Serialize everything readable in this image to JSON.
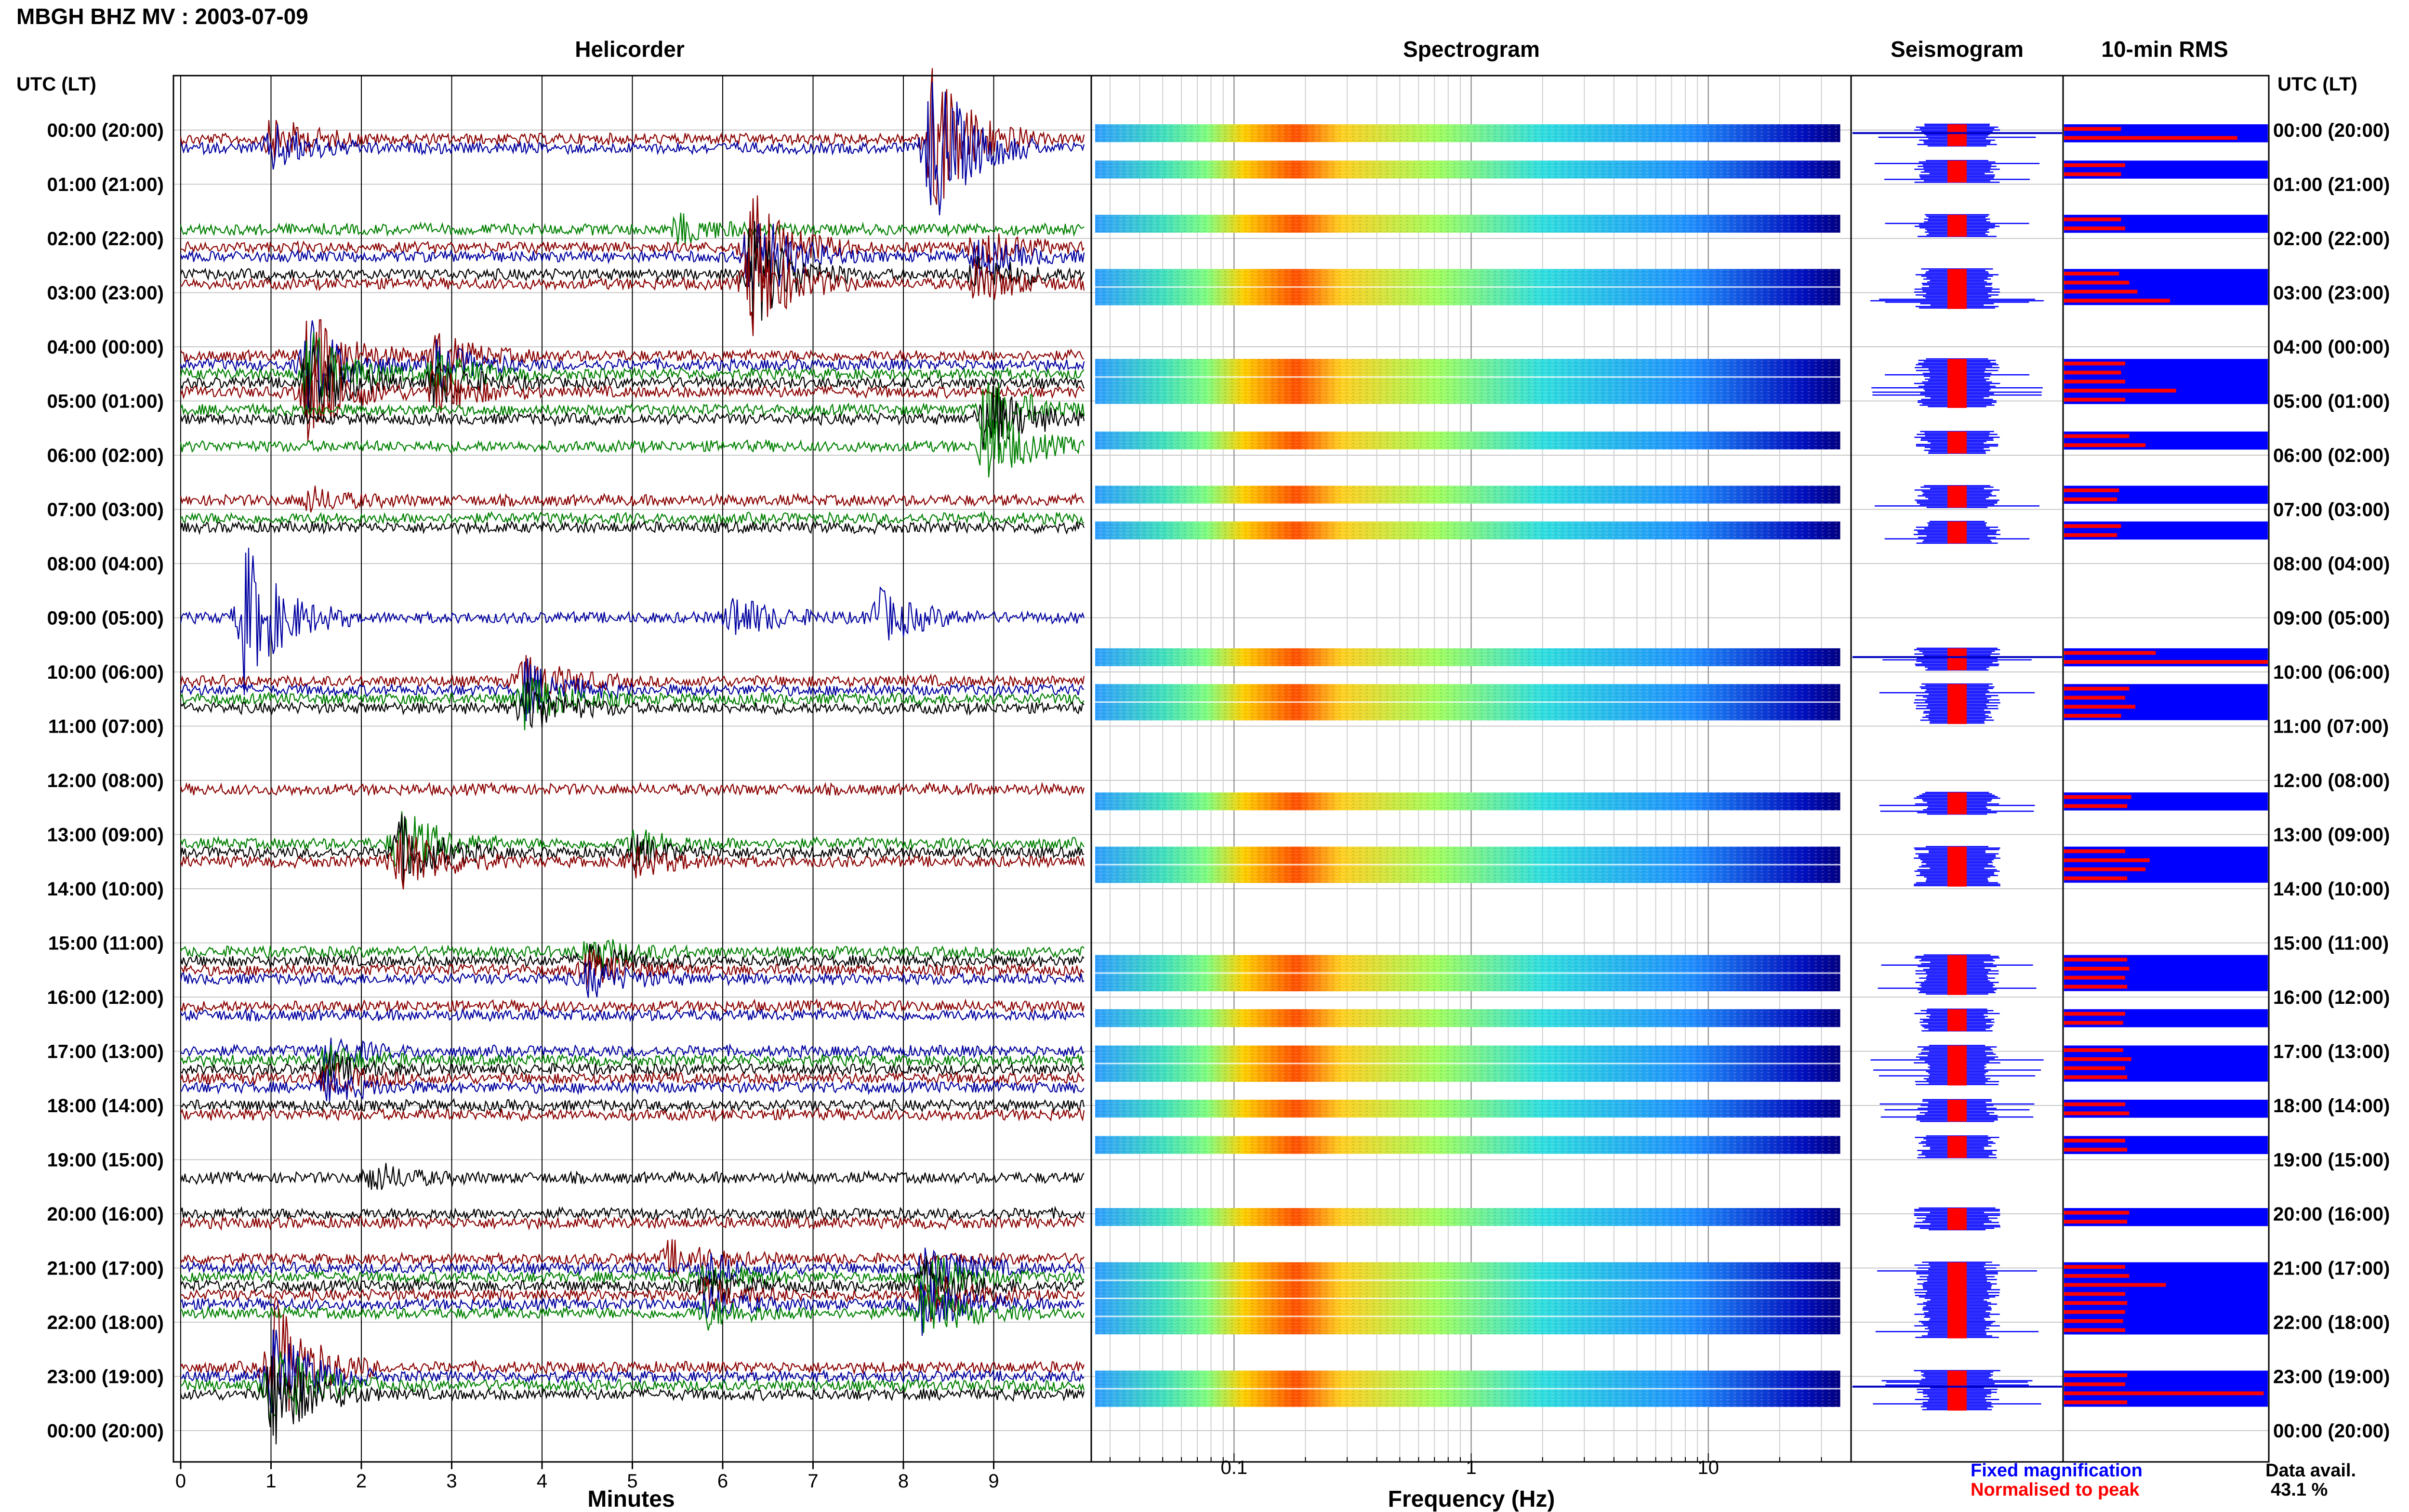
{
  "figure_title": "MBGH BHZ MV : 2003-07-09",
  "utc_label_left": "UTC (LT)",
  "utc_label_right": "UTC (LT)",
  "time_labels": [
    "00:00 (20:00)",
    "01:00 (21:00)",
    "02:00 (22:00)",
    "03:00 (23:00)",
    "04:00 (00:00)",
    "05:00 (01:00)",
    "06:00 (02:00)",
    "07:00 (03:00)",
    "08:00 (04:00)",
    "09:00 (05:00)",
    "10:00 (06:00)",
    "11:00 (07:00)",
    "12:00 (08:00)",
    "13:00 (09:00)",
    "14:00 (10:00)",
    "15:00 (11:00)",
    "16:00 (12:00)",
    "17:00 (13:00)",
    "18:00 (14:00)",
    "19:00 (15:00)",
    "20:00 (16:00)",
    "21:00 (17:00)",
    "22:00 (18:00)",
    "23:00 (19:00)",
    "00:00 (20:00)"
  ],
  "legend": {
    "fixed": "Fixed magnification",
    "normalised": "Normalised to peak",
    "fixed_color": "#0000ff",
    "normalised_color": "#ff0000"
  },
  "data_avail": {
    "label": "Data avail.",
    "value": "43.1 %"
  },
  "chart_data": [
    {
      "type": "line",
      "title": "Helicorder",
      "xlabel": "Minutes",
      "xlim": [
        0,
        10
      ],
      "xticks": [
        "0",
        "1",
        "2",
        "3",
        "4",
        "5",
        "6",
        "7",
        "8",
        "9"
      ],
      "trace_colors": [
        "#000000",
        "#8b0000",
        "#0000a0",
        "#008000"
      ],
      "rows": [
        {
          "hour": 0,
          "slots": [
            1,
            2
          ],
          "events": [
            {
              "min": 1.0,
              "amp": 0.8
            },
            {
              "min": 8.3,
              "amp": 3.0
            }
          ]
        },
        {
          "hour": 1,
          "slots": [
            5
          ],
          "events": [
            {
              "min": 5.5,
              "amp": 0.5
            }
          ]
        },
        {
          "hour": 2,
          "slots": [
            1,
            2,
            4,
            5
          ],
          "events": [
            {
              "min": 6.3,
              "amp": 2.0
            },
            {
              "min": 8.8,
              "amp": 0.7
            }
          ]
        },
        {
          "hour": 4,
          "slots": [
            1,
            2,
            3,
            4,
            5
          ],
          "events": [
            {
              "min": 1.4,
              "amp": 1.6
            },
            {
              "min": 2.8,
              "amp": 0.8
            }
          ]
        },
        {
          "hour": 5,
          "slots": [
            1,
            2,
            5
          ],
          "events": [
            {
              "min": 8.9,
              "amp": 1.4
            }
          ]
        },
        {
          "hour": 6,
          "slots": [
            5
          ],
          "events": [
            {
              "min": 1.4,
              "amp": 0.4
            }
          ]
        },
        {
          "hour": 7,
          "slots": [
            1,
            2
          ],
          "events": []
        },
        {
          "hour": 9,
          "slots": [
            0
          ],
          "events": [
            {
              "min": 0.7,
              "amp": 2.6
            },
            {
              "min": 6.1,
              "amp": 0.8
            },
            {
              "min": 7.7,
              "amp": 1.0
            }
          ]
        },
        {
          "hour": 10,
          "slots": [
            1,
            2,
            3,
            4
          ],
          "events": [
            {
              "min": 3.8,
              "amp": 1.0
            }
          ]
        },
        {
          "hour": 12,
          "slots": [
            1
          ],
          "events": []
        },
        {
          "hour": 13,
          "slots": [
            1,
            2,
            3
          ],
          "events": [
            {
              "min": 2.4,
              "amp": 1.3
            },
            {
              "min": 5.0,
              "amp": 0.5
            }
          ]
        },
        {
          "hour": 15,
          "slots": [
            1,
            2,
            3,
            4
          ],
          "events": [
            {
              "min": 4.5,
              "amp": 0.6
            }
          ]
        },
        {
          "hour": 16,
          "slots": [
            1,
            2
          ],
          "events": []
        },
        {
          "hour": 17,
          "slots": [
            0,
            1,
            2,
            3,
            4
          ],
          "events": [
            {
              "min": 1.6,
              "amp": 0.5
            }
          ]
        },
        {
          "hour": 18,
          "slots": [
            0,
            1
          ],
          "events": []
        },
        {
          "hour": 19,
          "slots": [
            2
          ],
          "events": [
            {
              "min": 2.1,
              "amp": 0.5
            }
          ]
        },
        {
          "hour": 20,
          "slots": [
            0,
            1
          ],
          "events": []
        },
        {
          "hour": 20,
          "slots": [
            5
          ],
          "events": [
            {
              "min": 5.4,
              "amp": 0.6
            }
          ]
        },
        {
          "hour": 21,
          "slots": [
            0,
            1,
            2,
            3,
            4,
            5
          ],
          "events": [
            {
              "min": 8.2,
              "amp": 1.0
            },
            {
              "min": 5.8,
              "amp": 0.5
            }
          ]
        },
        {
          "hour": 22,
          "slots": [
            5
          ],
          "events": [
            {
              "min": 1.0,
              "amp": 2.6
            }
          ]
        },
        {
          "hour": 23,
          "slots": [
            0,
            1,
            2
          ],
          "events": [
            {
              "min": 1.0,
              "amp": 1.8
            }
          ]
        }
      ]
    },
    {
      "type": "heatmap",
      "title": "Spectrogram",
      "xlabel": "Frequency (Hz)",
      "xscale": "log",
      "xlim": [
        0.025,
        40
      ],
      "xticks": [
        "0.1",
        "1",
        "10"
      ],
      "colormap": [
        "#00008f",
        "#0000ff",
        "#0080ff",
        "#00ffff",
        "#80ff80",
        "#ffff00",
        "#ff8000",
        "#ff0000"
      ],
      "rows": [
        {
          "hour": 0.0,
          "span": 0.33
        },
        {
          "hour": 0.67,
          "span": 0.33
        },
        {
          "hour": 1.67,
          "span": 0.33
        },
        {
          "hour": 2.67,
          "span": 0.67
        },
        {
          "hour": 4.33,
          "span": 0.83
        },
        {
          "hour": 5.67,
          "span": 0.33
        },
        {
          "hour": 6.67,
          "span": 0.33
        },
        {
          "hour": 7.33,
          "span": 0.33
        },
        {
          "hour": 9.67,
          "span": 0.33
        },
        {
          "hour": 10.33,
          "span": 0.67
        },
        {
          "hour": 12.33,
          "span": 0.33
        },
        {
          "hour": 13.33,
          "span": 0.67
        },
        {
          "hour": 15.33,
          "span": 0.67
        },
        {
          "hour": 16.33,
          "span": 0.33
        },
        {
          "hour": 17.0,
          "span": 0.67
        },
        {
          "hour": 18.0,
          "span": 0.33
        },
        {
          "hour": 18.67,
          "span": 0.33
        },
        {
          "hour": 20.0,
          "span": 0.33
        },
        {
          "hour": 21.0,
          "span": 1.33
        },
        {
          "hour": 23.0,
          "span": 0.67
        }
      ]
    },
    {
      "type": "bar",
      "title": "Seismogram",
      "series": [
        {
          "name": "Fixed magnification",
          "color": "#0000ff"
        },
        {
          "name": "Normalised to peak",
          "color": "#ff0000"
        }
      ]
    },
    {
      "type": "bar",
      "title": "10-min RMS",
      "orientation": "horizontal",
      "series": [
        {
          "name": "Fixed magnification",
          "color": "#0000ff"
        },
        {
          "name": "Normalised to peak",
          "color": "#ff0000"
        }
      ],
      "rows": [
        {
          "hour": 0.0,
          "values": [
            0.28,
            0.85
          ]
        },
        {
          "hour": 0.67,
          "values": [
            0.3,
            0.28
          ]
        },
        {
          "hour": 1.67,
          "values": [
            0.28,
            0.3
          ]
        },
        {
          "hour": 2.67,
          "values": [
            0.27,
            0.32,
            0.36,
            0.52
          ]
        },
        {
          "hour": 4.33,
          "values": [
            0.3,
            0.28,
            0.3,
            0.55,
            0.3
          ]
        },
        {
          "hour": 5.67,
          "values": [
            0.32,
            0.4
          ]
        },
        {
          "hour": 6.67,
          "values": [
            0.27,
            0.26
          ]
        },
        {
          "hour": 7.33,
          "values": [
            0.28,
            0.26
          ]
        },
        {
          "hour": 9.67,
          "values": [
            0.45,
            1.0
          ]
        },
        {
          "hour": 10.33,
          "values": [
            0.32,
            0.3,
            0.35,
            0.28
          ]
        },
        {
          "hour": 12.33,
          "values": [
            0.33,
            0.31
          ]
        },
        {
          "hour": 13.33,
          "values": [
            0.3,
            0.42,
            0.4,
            0.31
          ]
        },
        {
          "hour": 15.33,
          "values": [
            0.31,
            0.32,
            0.3,
            0.31
          ]
        },
        {
          "hour": 16.33,
          "values": [
            0.3,
            0.29
          ]
        },
        {
          "hour": 17.0,
          "values": [
            0.29,
            0.33,
            0.3,
            0.31
          ]
        },
        {
          "hour": 18.0,
          "values": [
            0.3,
            0.32
          ]
        },
        {
          "hour": 18.67,
          "values": [
            0.3,
            0.31
          ]
        },
        {
          "hour": 20.0,
          "values": [
            0.32,
            0.31
          ]
        },
        {
          "hour": 21.0,
          "values": [
            0.3,
            0.32,
            0.5,
            0.3,
            0.31,
            0.3,
            0.29,
            0.3
          ]
        },
        {
          "hour": 23.0,
          "values": [
            0.31,
            0.3,
            0.98,
            0.31
          ]
        }
      ]
    }
  ]
}
